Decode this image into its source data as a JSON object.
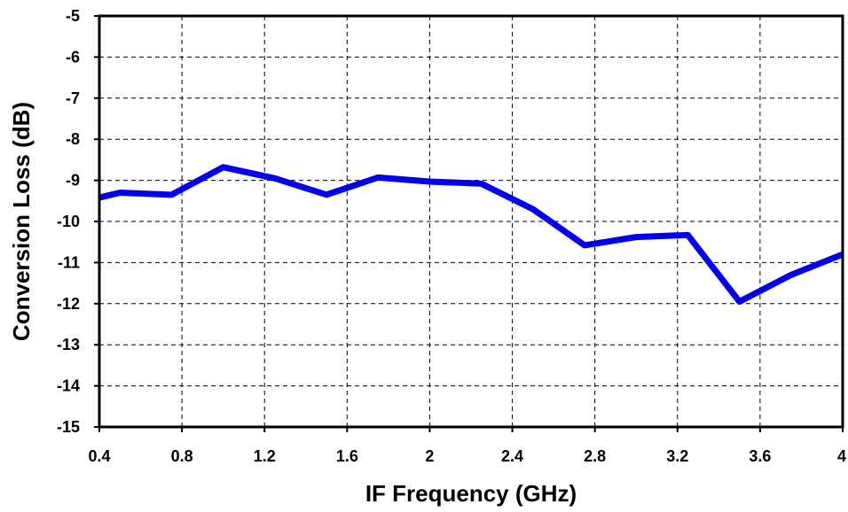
{
  "chart_data": {
    "type": "line",
    "title": "",
    "xlabel": "IF Frequency (GHz)",
    "ylabel": "Conversion Loss (dB)",
    "xlim": [
      0.4,
      4
    ],
    "ylim": [
      -15,
      -5
    ],
    "xticks": [
      0.4,
      0.8,
      1.2,
      1.6,
      2,
      2.4,
      2.8,
      3.2,
      3.6,
      4
    ],
    "xtick_labels": [
      "0.4",
      "0.8",
      "1.2",
      "1.6",
      "2",
      "2.4",
      "2.8",
      "3.2",
      "3.6",
      "4"
    ],
    "yticks": [
      -5,
      -6,
      -7,
      -8,
      -9,
      -10,
      -11,
      -12,
      -13,
      -14,
      -15
    ],
    "ytick_labels": [
      "-5",
      "-6",
      "-7",
      "-8",
      "-9",
      "-10",
      "-11",
      "-12",
      "-13",
      "-14",
      "-15"
    ],
    "grid": true,
    "legend": "none",
    "series": [
      {
        "color": "#0000ee",
        "x": [
          0.4,
          0.5,
          0.75,
          1.0,
          1.25,
          1.5,
          1.75,
          2.0,
          2.25,
          2.5,
          2.75,
          3.0,
          3.25,
          3.5,
          3.75,
          4.0
        ],
        "y": [
          -9.42,
          -9.3,
          -9.35,
          -8.68,
          -8.95,
          -9.35,
          -8.93,
          -9.03,
          -9.08,
          -9.7,
          -10.58,
          -10.38,
          -10.33,
          -11.95,
          -11.3,
          -10.8
        ]
      }
    ]
  }
}
